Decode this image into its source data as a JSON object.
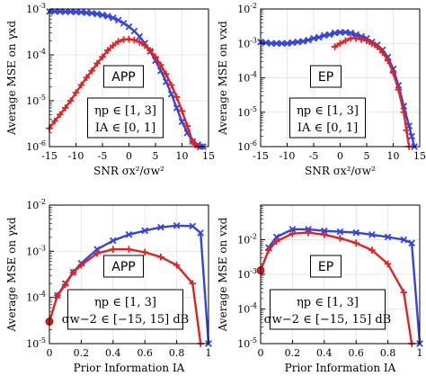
{
  "colors": {
    "blue": "#3344dd",
    "red": "#e52020",
    "grid": "#dddddd",
    "axis": "#000000"
  },
  "chart_data": [
    {
      "type": "line",
      "panel": "top-left",
      "xlabel": "SNR σx²/σw²",
      "ylabel": "Average MSE on γxd",
      "xlim": [
        -15,
        15
      ],
      "ylim": [
        1e-06,
        0.001
      ],
      "yscale": "log",
      "xticks": [
        -15,
        -10,
        -5,
        0,
        5,
        10,
        15
      ],
      "yticks": [
        "10-6",
        "10-5",
        "10-4",
        "10-3"
      ],
      "grid": true,
      "tag": "APP",
      "annotation": [
        "ηp ∈ [1, 3]",
        "IA ∈ [0, 1]"
      ],
      "series": [
        {
          "color": "blue",
          "marker": "x",
          "x": [
            -15,
            -14,
            -13,
            -12,
            -11,
            -10,
            -9,
            -8,
            -7,
            -6,
            -5,
            -4,
            -3,
            -2,
            -1,
            0,
            1,
            2,
            3,
            4,
            5,
            6,
            7,
            8,
            9,
            10,
            11,
            12,
            13,
            13.5,
            14
          ],
          "y": [
            0.00088,
            0.00088,
            0.00088,
            0.00087,
            0.00087,
            0.00086,
            0.00085,
            0.00083,
            0.00081,
            0.00078,
            0.00074,
            0.0007,
            0.00064,
            0.00057,
            0.00049,
            0.00041,
            0.00033,
            0.00025,
            0.00018,
            0.00012,
            7.5e-05,
            4.5e-05,
            2.6e-05,
            1.4e-05,
            7e-06,
            3.5e-06,
            2e-06,
            1.3e-06,
            1.1e-06,
            1e-06,
            1e-06
          ]
        },
        {
          "color": "red",
          "marker": "+",
          "x": [
            -15,
            -14,
            -13,
            -12,
            -11,
            -10,
            -9,
            -8,
            -7,
            -6,
            -5,
            -4,
            -3,
            -2,
            -1,
            0,
            1,
            2,
            3,
            4,
            5,
            6,
            7,
            8,
            9,
            10,
            11,
            12,
            12.5,
            13
          ],
          "y": [
            2.5e-06,
            3.6e-06,
            5e-06,
            7e-06,
            1e-05,
            1.5e-05,
            2.2e-05,
            3.2e-05,
            4.5e-05,
            6.5e-05,
            9e-05,
            0.000125,
            0.00016,
            0.000195,
            0.000215,
            0.00022,
            0.00021,
            0.00019,
            0.00016,
            0.000125,
            9e-05,
            6e-05,
            3.8e-05,
            2.2e-05,
            1.2e-05,
            6e-06,
            2.8e-06,
            1.3e-06,
            1.1e-06,
            1e-06
          ]
        }
      ]
    },
    {
      "type": "line",
      "panel": "top-right",
      "xlabel": "SNR σx²/σw²",
      "ylabel": "Average MSE on vxd",
      "xlim": [
        -15,
        15
      ],
      "ylim": [
        1e-06,
        0.01
      ],
      "yscale": "log",
      "xticks": [
        -15,
        -10,
        -5,
        0,
        5,
        10,
        15
      ],
      "yticks": [
        "10-6",
        "10-5",
        "10-4",
        "10-3",
        "10-2"
      ],
      "grid": true,
      "tag": "EP",
      "annotation": [
        "ηp ∈ [1, 3]",
        "IA ∈ [0, 1]"
      ],
      "series": [
        {
          "color": "blue",
          "marker": "x",
          "x": [
            -15,
            -14,
            -13,
            -12,
            -11,
            -10,
            -9,
            -8,
            -7,
            -6,
            -5,
            -4,
            -3,
            -2,
            -1,
            0,
            1,
            2,
            3,
            4,
            5,
            6,
            7,
            8,
            9,
            10,
            11,
            12,
            13,
            13.5,
            14
          ],
          "y": [
            0.0011,
            0.00105,
            0.001,
            0.001,
            0.001,
            0.001,
            0.00105,
            0.0011,
            0.00115,
            0.00125,
            0.0014,
            0.0015,
            0.0017,
            0.0018,
            0.002,
            0.0021,
            0.0021,
            0.002,
            0.0018,
            0.0016,
            0.0014,
            0.0011,
            0.0009,
            0.00065,
            0.0004,
            0.00018,
            6e-05,
            1.5e-05,
            4e-06,
            2e-06,
            1e-06
          ]
        },
        {
          "color": "red",
          "marker": "+",
          "x": [
            -1,
            0,
            1,
            2,
            3,
            4,
            5,
            6,
            7,
            8,
            9,
            10,
            11,
            12,
            12.5,
            13
          ],
          "y": [
            0.0008,
            0.001,
            0.0012,
            0.0014,
            0.0014,
            0.0013,
            0.0012,
            0.001,
            0.0008,
            0.00055,
            0.00032,
            0.00014,
            4.5e-05,
            1e-05,
            3e-06,
            1e-06
          ]
        }
      ]
    },
    {
      "type": "line",
      "panel": "bottom-left",
      "xlabel": "Prior Information IA",
      "ylabel": "Average MSE on γxd",
      "xlim": [
        0,
        1
      ],
      "ylim": [
        1e-05,
        0.01
      ],
      "yscale": "log",
      "xticks": [
        0,
        0.2,
        0.4,
        0.6,
        0.8,
        1
      ],
      "yticks": [
        "10-5",
        "10-4",
        "10-3",
        "10-2"
      ],
      "grid": true,
      "tag": "APP",
      "annotation": [
        "ηp ∈ [1, 3]",
        "σw−2 ∈ [−15, 15] dB"
      ],
      "series": [
        {
          "color": "blue",
          "marker": "x",
          "x": [
            0.05,
            0.1,
            0.15,
            0.2,
            0.3,
            0.4,
            0.5,
            0.6,
            0.7,
            0.8,
            0.9,
            0.95,
            1.0
          ],
          "y": [
            0.00011,
            0.0002,
            0.00035,
            0.00055,
            0.0011,
            0.0017,
            0.0023,
            0.0028,
            0.0033,
            0.0036,
            0.0035,
            0.0025,
            1e-05
          ]
        },
        {
          "color": "red",
          "marker": "+",
          "x": [
            0.0,
            0.05,
            0.1,
            0.15,
            0.2,
            0.3,
            0.4,
            0.5,
            0.6,
            0.7,
            0.8,
            0.9,
            0.95
          ],
          "y": [
            3e-05,
            0.00011,
            0.00019,
            0.00035,
            0.0005,
            0.0009,
            0.0011,
            0.0011,
            0.00095,
            0.00075,
            0.0005,
            0.0002,
            1e-05
          ]
        }
      ]
    },
    {
      "type": "line",
      "panel": "bottom-right",
      "xlabel": "Prior Information IA",
      "ylabel": "Average MSE on vxd",
      "xlim": [
        0,
        1
      ],
      "ylim": [
        1e-05,
        0.1
      ],
      "yscale": "log",
      "xticks": [
        0,
        0.2,
        0.4,
        0.6,
        0.8,
        1
      ],
      "yticks": [
        "10-5",
        "10-4",
        "10-3",
        "10-2"
      ],
      "grid": true,
      "tag": "EP",
      "annotation": [
        "ηp ∈ [1, 3]",
        "σw−2 ∈ [−15, 15] dB"
      ],
      "series": [
        {
          "color": "blue",
          "marker": "x",
          "x": [
            0.05,
            0.1,
            0.2,
            0.3,
            0.4,
            0.5,
            0.6,
            0.7,
            0.8,
            0.9,
            0.95,
            1.0
          ],
          "y": [
            0.006,
            0.012,
            0.02,
            0.02,
            0.018,
            0.017,
            0.016,
            0.014,
            0.012,
            0.01,
            0.008,
            1e-05
          ]
        },
        {
          "color": "red",
          "marker": "+",
          "x": [
            0.0,
            0.05,
            0.1,
            0.2,
            0.3,
            0.4,
            0.5,
            0.6,
            0.7,
            0.8,
            0.9,
            0.95
          ],
          "y": [
            0.0013,
            0.005,
            0.009,
            0.015,
            0.016,
            0.014,
            0.011,
            0.008,
            0.005,
            0.002,
            0.0003,
            1e-05
          ]
        }
      ]
    }
  ]
}
